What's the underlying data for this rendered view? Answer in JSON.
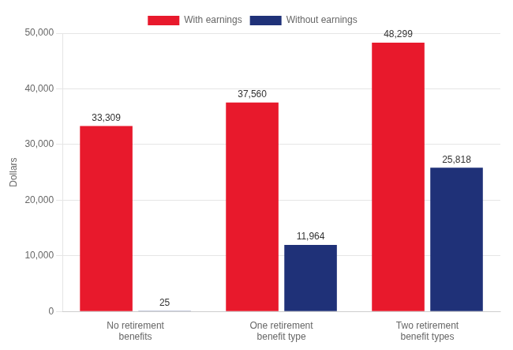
{
  "chart_data": {
    "type": "bar",
    "categories": [
      "No retirement\nbenefits",
      "One retirement\nbenefit type",
      "Two retirement\nbenefit types"
    ],
    "series": [
      {
        "name": "With earnings",
        "color": "#e8192c",
        "values": [
          33309,
          37560,
          48299
        ],
        "value_labels": [
          "33,309",
          "37,560",
          "48,299"
        ]
      },
      {
        "name": "Without earnings",
        "color": "#1f3178",
        "values": [
          25,
          11964,
          25818
        ],
        "value_labels": [
          "25",
          "11,964",
          "25,818"
        ]
      }
    ],
    "ylabel": "Dollars",
    "ylim": [
      0,
      50000
    ],
    "yticks": [
      0,
      {
        "value": 10000,
        "label": "10,000"
      },
      {
        "value": 20000,
        "label": "20,000"
      },
      {
        "value": 30000,
        "label": "30,000"
      },
      {
        "value": 40000,
        "label": "40,000"
      },
      {
        "value": 50000,
        "label": "50,000"
      }
    ],
    "grid": true,
    "legend": "top",
    "data_labels": true
  }
}
